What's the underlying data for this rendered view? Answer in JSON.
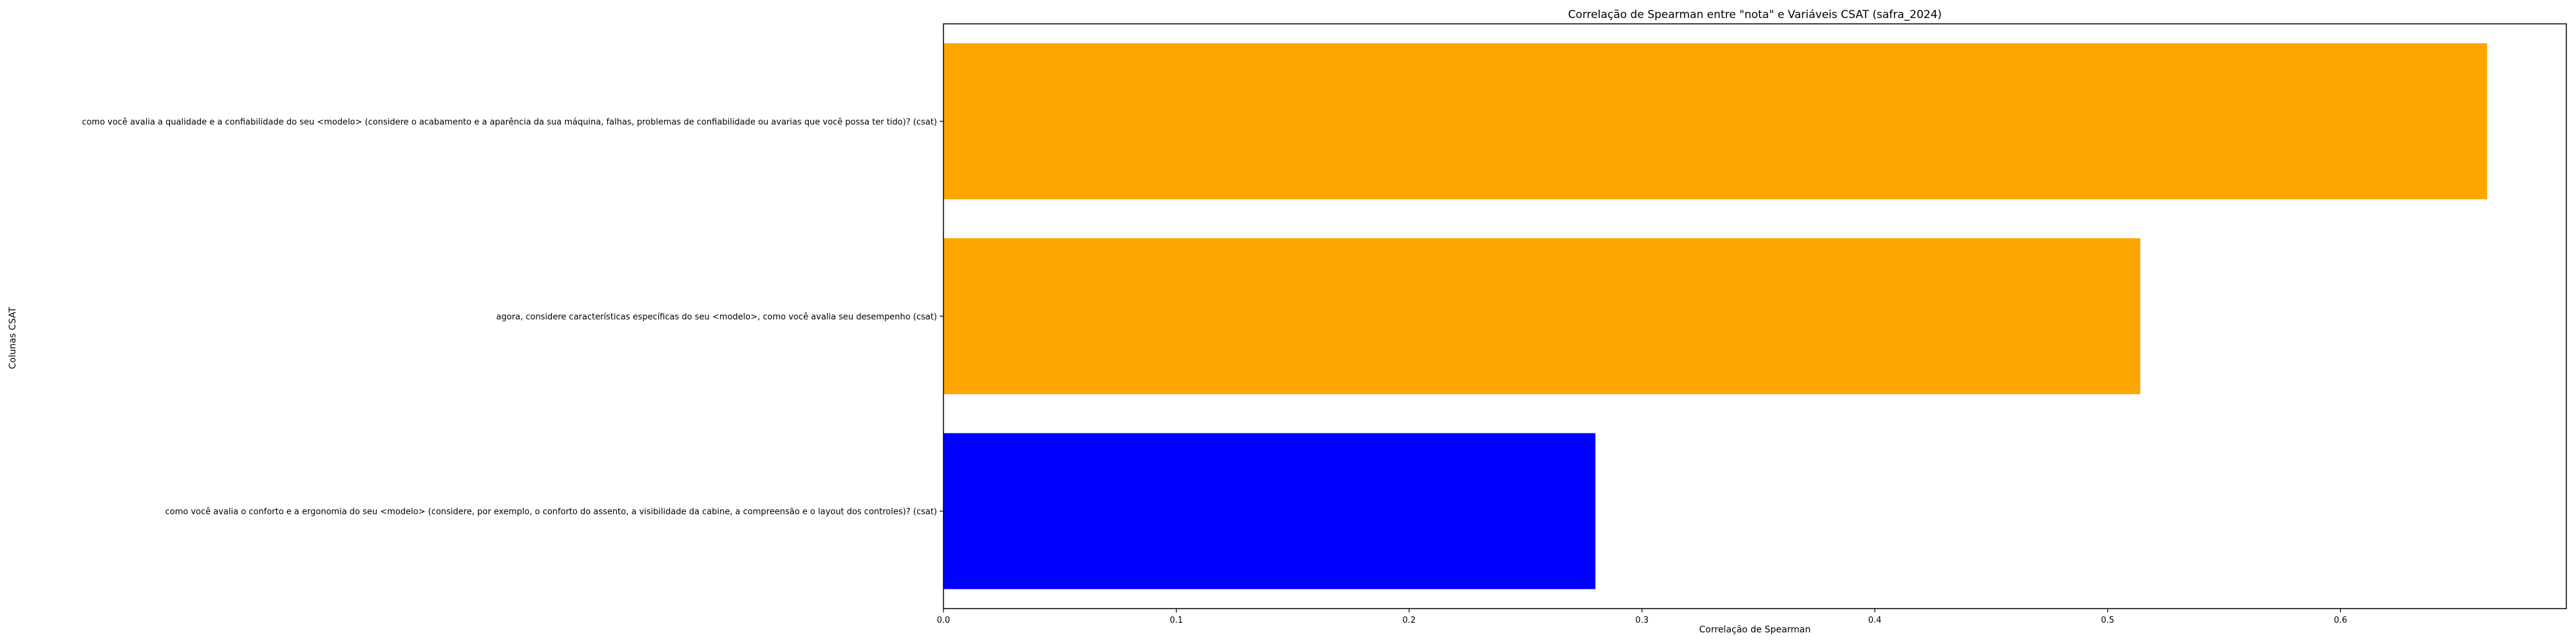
{
  "colors": {
    "accent_orange": "#FFA500",
    "accent_blue": "#0000FF",
    "axis": "#000000"
  },
  "chart_data": {
    "type": "bar",
    "orientation": "horizontal",
    "title": "Correlação de Spearman entre \"nota\" e Variáveis CSAT (safra_2024)",
    "xlabel": "Correlação de Spearman",
    "ylabel": "Colunas CSAT",
    "xlim": [
      0,
      0.697
    ],
    "xticks": [
      0.0,
      0.1,
      0.2,
      0.3,
      0.4,
      0.5,
      0.6
    ],
    "xtick_labels": [
      "0.0",
      "0.1",
      "0.2",
      "0.3",
      "0.4",
      "0.5",
      "0.6"
    ],
    "grid": false,
    "categories": [
      "como você avalia a qualidade e a confiabilidade do seu <modelo> (considere o acabamento e a aparência da sua máquina, falhas, problemas de confiabilidade ou avarias que você possa ter tido)? (csat)",
      "agora, considere características específicas do seu <modelo>, como você avalia seu desempenho (csat)",
      "como você avalia o conforto e a ergonomia do seu <modelo>  (considere, por exemplo, o conforto do assento, a visibilidade da cabine, a compreensão e o layout dos controles)? (csat)"
    ],
    "values": [
      0.663,
      0.514,
      0.28
    ],
    "bar_colors": [
      "#FFA500",
      "#FFA500",
      "#0000FF"
    ]
  }
}
